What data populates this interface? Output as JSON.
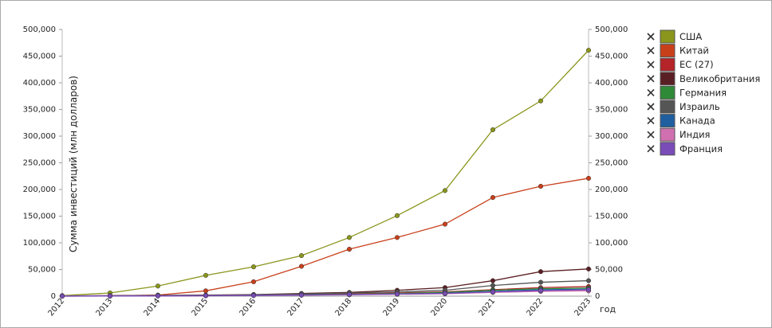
{
  "chart_data": {
    "type": "line",
    "y_label": "Сумма инвестиций (млн долларов)",
    "x_label": "год",
    "categories": [
      "2012",
      "2013",
      "2014",
      "2015",
      "2016",
      "2017",
      "2018",
      "2019",
      "2020",
      "2021",
      "2022",
      "2023"
    ],
    "ylim": [
      0,
      500000
    ],
    "yticks": [
      0,
      {
        "value": 50000,
        "label": "50,000"
      },
      {
        "value": 100000,
        "label": "100,000"
      },
      {
        "value": 150000,
        "label": "150,000"
      },
      {
        "value": 200000,
        "label": "200,000"
      },
      {
        "value": 250000,
        "label": "250,000"
      },
      {
        "value": 300000,
        "label": "300,000"
      },
      {
        "value": 350000,
        "label": "350,000"
      },
      {
        "value": 400000,
        "label": "400,000"
      },
      {
        "value": 450000,
        "label": "450,000"
      },
      {
        "value": 500000,
        "label": "500,000"
      }
    ],
    "y2lim": [
      0,
      500000
    ],
    "y2ticks": [
      0,
      {
        "value": 50000,
        "label": "50,000"
      },
      {
        "value": 100000,
        "label": "100,000"
      },
      {
        "value": 150000,
        "label": "150,000"
      },
      {
        "value": 200000,
        "label": "200,000"
      },
      {
        "value": 250000,
        "label": "250,000"
      },
      {
        "value": 300000,
        "label": "300,000"
      },
      {
        "value": 350000,
        "label": "350,000"
      },
      {
        "value": 400000,
        "label": "400,000"
      },
      {
        "value": 450000,
        "label": "450,000"
      },
      {
        "value": 500000,
        "label": "500,000"
      }
    ],
    "series": [
      {
        "name": "США",
        "color": "#8a961c",
        "values": [
          1000,
          6000,
          19000,
          39000,
          55000,
          76000,
          110000,
          151000,
          198000,
          312000,
          366000,
          461000
        ]
      },
      {
        "name": "Китай",
        "color": "#c8401a",
        "values": [
          0,
          500,
          2000,
          10000,
          27000,
          56000,
          88000,
          110000,
          135000,
          185000,
          206000,
          221000
        ]
      },
      {
        "name": "ЕС (27)",
        "color": "#b52428",
        "values": [
          300,
          500,
          800,
          1200,
          2000,
          3000,
          4500,
          6000,
          8000,
          12000,
          16000,
          18000
        ]
      },
      {
        "name": "Великобритания",
        "color": "#5a1f24",
        "values": [
          500,
          1000,
          1500,
          2000,
          3000,
          5000,
          7000,
          11000,
          16000,
          29000,
          46000,
          51000
        ]
      },
      {
        "name": "Германия",
        "color": "#2e8a36",
        "values": [
          200,
          400,
          600,
          900,
          1500,
          2500,
          3500,
          5000,
          7000,
          11000,
          14000,
          15000
        ]
      },
      {
        "name": "Израиль",
        "color": "#555555",
        "values": [
          300,
          600,
          1000,
          1500,
          2500,
          4000,
          6000,
          8000,
          11000,
          20000,
          26000,
          29000
        ]
      },
      {
        "name": "Канада",
        "color": "#1f5fa0",
        "values": [
          200,
          400,
          600,
          900,
          1500,
          2000,
          3000,
          4000,
          5500,
          9000,
          12000,
          13000
        ]
      },
      {
        "name": "Индия",
        "color": "#d070b0",
        "values": [
          100,
          200,
          400,
          700,
          1200,
          1800,
          2500,
          3500,
          4500,
          7000,
          9000,
          10000
        ]
      },
      {
        "name": "Франция",
        "color": "#7a4cb8",
        "values": [
          100,
          300,
          500,
          800,
          1200,
          2000,
          3000,
          4000,
          5000,
          8000,
          10500,
          12000
        ]
      }
    ]
  }
}
